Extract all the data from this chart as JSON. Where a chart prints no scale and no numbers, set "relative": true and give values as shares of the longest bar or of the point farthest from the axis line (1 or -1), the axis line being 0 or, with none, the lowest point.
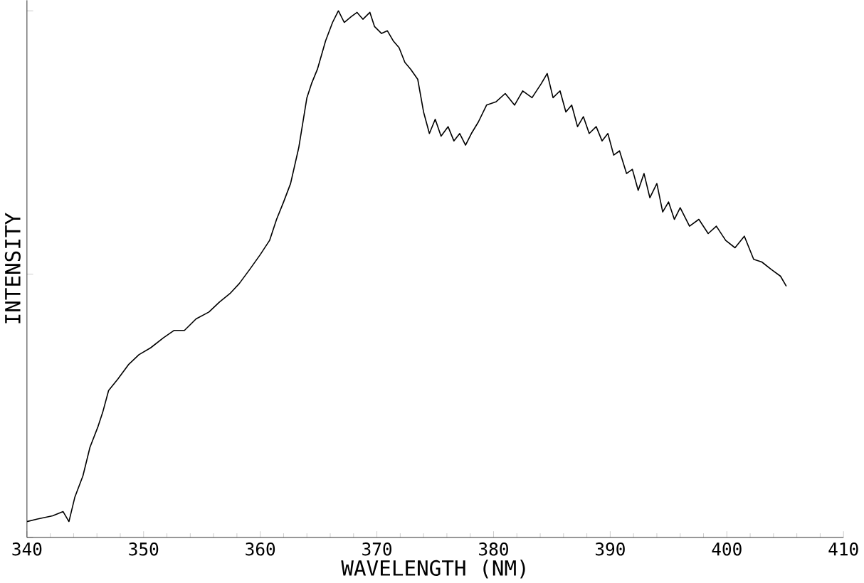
{
  "chart_data": {
    "type": "line",
    "xlabel": "WAVELENGTH (NM)",
    "ylabel": "INTENSITY",
    "relative": true,
    "tick_labels": "x",
    "xlim": [
      340,
      410
    ],
    "xticks": [
      340,
      350,
      360,
      370,
      380,
      390,
      400,
      410
    ],
    "marker": "none",
    "line_style": "solid",
    "series": [
      {
        "color": "#000000",
        "x": [
          340.0,
          340.9,
          342.2,
          343.1,
          343.6,
          344.1,
          344.8,
          345.4,
          346.1,
          346.5,
          347.0,
          347.8,
          348.7,
          349.6,
          350.6,
          351.7,
          352.6,
          353.5,
          354.5,
          355.6,
          356.5,
          357.4,
          358.2,
          359.1,
          360.0,
          360.8,
          361.4,
          362.0,
          362.6,
          363.3,
          364.0,
          364.4,
          364.9,
          365.6,
          366.2,
          366.7,
          367.2,
          367.8,
          368.3,
          368.8,
          369.4,
          369.8,
          370.4,
          370.9,
          371.4,
          371.9,
          372.4,
          372.9,
          373.5,
          374.0,
          374.5,
          375.0,
          375.5,
          376.1,
          376.6,
          377.1,
          377.6,
          378.1,
          378.7,
          379.4,
          380.2,
          381.0,
          381.8,
          382.5,
          383.3,
          384.1,
          384.6,
          385.1,
          385.7,
          386.2,
          386.7,
          387.2,
          387.7,
          388.2,
          388.8,
          389.3,
          389.8,
          390.3,
          390.8,
          391.4,
          391.9,
          392.4,
          392.9,
          393.4,
          394.0,
          394.5,
          395.0,
          395.5,
          396.0,
          396.8,
          397.6,
          398.4,
          399.1,
          399.9,
          400.7,
          401.5,
          402.3,
          403.0,
          403.8,
          404.6,
          405.1
        ],
        "values": [
          0.03,
          0.035,
          0.041,
          0.049,
          0.03,
          0.076,
          0.117,
          0.171,
          0.211,
          0.238,
          0.279,
          0.301,
          0.328,
          0.347,
          0.36,
          0.379,
          0.393,
          0.393,
          0.415,
          0.428,
          0.447,
          0.463,
          0.482,
          0.509,
          0.537,
          0.564,
          0.604,
          0.637,
          0.672,
          0.74,
          0.835,
          0.862,
          0.889,
          0.943,
          0.978,
          1.0,
          0.978,
          0.989,
          0.997,
          0.984,
          0.997,
          0.97,
          0.957,
          0.962,
          0.943,
          0.93,
          0.902,
          0.889,
          0.87,
          0.808,
          0.767,
          0.794,
          0.762,
          0.78,
          0.753,
          0.767,
          0.745,
          0.767,
          0.789,
          0.821,
          0.827,
          0.843,
          0.821,
          0.848,
          0.835,
          0.862,
          0.881,
          0.835,
          0.848,
          0.808,
          0.821,
          0.78,
          0.799,
          0.767,
          0.78,
          0.753,
          0.767,
          0.726,
          0.734,
          0.691,
          0.699,
          0.659,
          0.691,
          0.645,
          0.672,
          0.618,
          0.637,
          0.604,
          0.626,
          0.591,
          0.604,
          0.577,
          0.591,
          0.564,
          0.55,
          0.572,
          0.528,
          0.523,
          0.509,
          0.496,
          0.477
        ]
      }
    ]
  }
}
